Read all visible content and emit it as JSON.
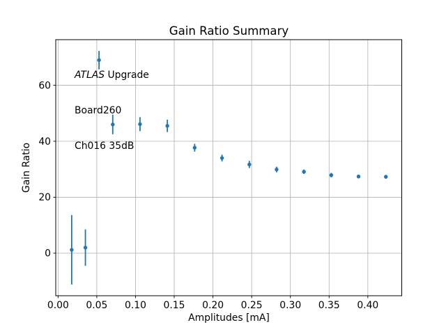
{
  "chart_data": {
    "type": "scatter",
    "title": "Gain Ratio Summary",
    "xlabel": "Amplitudes [mA]",
    "ylabel": "Gain Ratio",
    "xlim": [
      -0.003,
      0.4438
    ],
    "ylim": [
      -15.2,
      76.3
    ],
    "xticks": [
      0.0,
      0.05,
      0.1,
      0.15,
      0.2,
      0.25,
      0.3,
      0.35,
      0.4
    ],
    "xtick_labels": [
      "0.00",
      "0.05",
      "0.10",
      "0.15",
      "0.20",
      "0.25",
      "0.30",
      "0.35",
      "0.40"
    ],
    "yticks": [
      0,
      20,
      40,
      60
    ],
    "ytick_labels": [
      "0",
      "20",
      "40",
      "60"
    ],
    "grid": true,
    "grid_color": "#b0b0b0",
    "axis_color": "#000000",
    "background_color": "#ffffff",
    "legend": null,
    "annotation": {
      "experiment": "ATLAS",
      "line1_rest": " Upgrade",
      "line2": "Board260",
      "line3": "Ch016 35dB"
    },
    "series": [
      {
        "name": "gain-ratio-errorbar",
        "color": "#1f77b4",
        "marker": "circle",
        "points": [
          {
            "x": 0.0176,
            "y": 1.2,
            "yerr": 12.4
          },
          {
            "x": 0.0353,
            "y": 2.0,
            "yerr": 6.5
          },
          {
            "x": 0.0529,
            "y": 69.0,
            "yerr": 3.3
          },
          {
            "x": 0.0706,
            "y": 46.0,
            "yerr": 3.5
          },
          {
            "x": 0.1058,
            "y": 46.1,
            "yerr": 2.5
          },
          {
            "x": 0.1411,
            "y": 45.5,
            "yerr": 2.2
          },
          {
            "x": 0.1764,
            "y": 37.7,
            "yerr": 1.4
          },
          {
            "x": 0.2117,
            "y": 34.0,
            "yerr": 1.2
          },
          {
            "x": 0.247,
            "y": 31.7,
            "yerr": 1.3
          },
          {
            "x": 0.2822,
            "y": 29.9,
            "yerr": 1.0
          },
          {
            "x": 0.3175,
            "y": 29.1,
            "yerr": 0.8
          },
          {
            "x": 0.3528,
            "y": 27.9,
            "yerr": 0.8
          },
          {
            "x": 0.388,
            "y": 27.4,
            "yerr": 0.7
          },
          {
            "x": 0.4233,
            "y": 27.3,
            "yerr": 0.7
          }
        ]
      }
    ]
  }
}
